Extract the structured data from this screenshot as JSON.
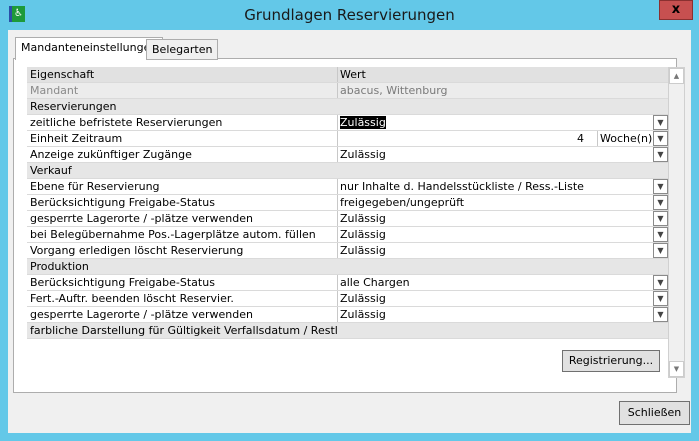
{
  "window": {
    "title": "Grundlagen Reservierungen",
    "close_label": "x"
  },
  "tabs": [
    {
      "label": "Mandanteneinstellungen",
      "active": true
    },
    {
      "label": "Belegarten",
      "active": false
    }
  ],
  "grid": {
    "header": {
      "key": "Eigenschaft",
      "value": "Wert"
    },
    "rows": [
      {
        "type": "readonly",
        "key": "Mandant",
        "value": "abacus, Wittenburg"
      },
      {
        "type": "section",
        "key": "Reservierungen"
      },
      {
        "type": "dropdown",
        "key": "zeitliche befristete Reservierungen",
        "value": "Zulässig",
        "selected": true
      },
      {
        "type": "number-unit",
        "key": "Einheit Zeitraum",
        "value": "4",
        "unit": "Woche(n)"
      },
      {
        "type": "dropdown",
        "key": "Anzeige zukünftiger Zugänge",
        "value": "Zulässig"
      },
      {
        "type": "section",
        "key": "Verkauf"
      },
      {
        "type": "dropdown",
        "key": "Ebene für Reservierung",
        "value": "nur Inhalte d. Handelsstückliste / Ress.-Liste"
      },
      {
        "type": "dropdown",
        "key": "Berücksichtigung Freigabe-Status",
        "value": "freigegeben/ungeprüft"
      },
      {
        "type": "dropdown",
        "key": "gesperrte Lagerorte / -plätze verwenden",
        "value": "Zulässig"
      },
      {
        "type": "dropdown",
        "key": "bei Belegübernahme Pos.-Lagerplätze autom. füllen",
        "value": "Zulässig"
      },
      {
        "type": "dropdown",
        "key": "Vorgang erledigen löscht Reservierung",
        "value": "Zulässig"
      },
      {
        "type": "section",
        "key": "Produktion"
      },
      {
        "type": "dropdown",
        "key": "Berücksichtigung Freigabe-Status",
        "value": "alle Chargen"
      },
      {
        "type": "dropdown",
        "key": "Fert.-Auftr. beenden löscht Reservier.",
        "value": "Zulässig"
      },
      {
        "type": "dropdown",
        "key": "gesperrte Lagerorte / -plätze verwenden",
        "value": "Zulässig"
      },
      {
        "type": "section",
        "key": "farbliche Darstellung für Gültigkeit Verfallsdatum / Restlaufzeit"
      }
    ]
  },
  "buttons": {
    "register": "Registrierung...",
    "close": "Schließen"
  },
  "colors": {
    "titlebar": "#63c8e8",
    "close_button": "#c75050",
    "selection": "#000000"
  }
}
